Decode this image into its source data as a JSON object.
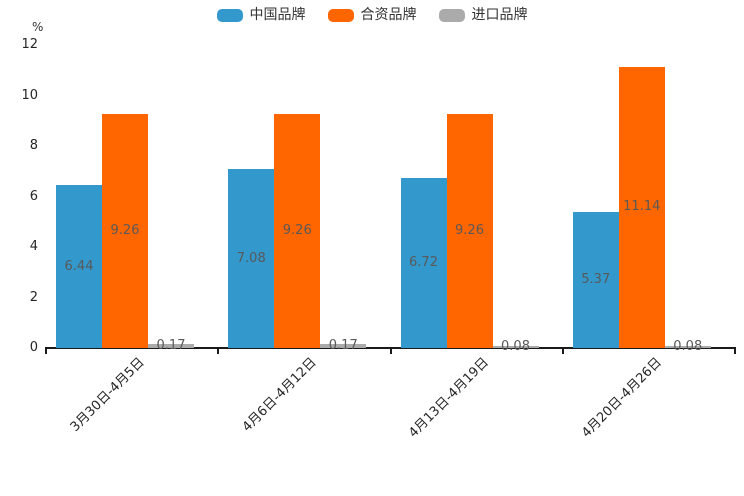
{
  "legend": {
    "items": [
      {
        "label": "中国品牌",
        "color": "#3398CC"
      },
      {
        "label": "合资品牌",
        "color": "#FF6600"
      },
      {
        "label": "进口品牌",
        "color": "#ABABAB"
      }
    ]
  },
  "chart_data": {
    "type": "bar",
    "title": "",
    "ylabel": "%",
    "xlabel": "",
    "ylim": [
      0,
      12
    ],
    "yticks": [
      0,
      2,
      4,
      6,
      8,
      10,
      12
    ],
    "grid": false,
    "legend_position": "top",
    "value_label_decimals": 2,
    "categories": [
      "3月30日-4月5日",
      "4月6日-4月12日",
      "4月13日-4月19日",
      "4月20日-4月26日"
    ],
    "series": [
      {
        "name": "中国品牌",
        "color": "#3398CC",
        "values": [
          6.44,
          7.08,
          6.72,
          5.37
        ]
      },
      {
        "name": "合资品牌",
        "color": "#FF6600",
        "values": [
          9.26,
          9.26,
          9.26,
          11.14
        ]
      },
      {
        "name": "进口品牌",
        "color": "#ABABAB",
        "values": [
          0.17,
          0.17,
          0.08,
          0.08
        ]
      }
    ]
  }
}
